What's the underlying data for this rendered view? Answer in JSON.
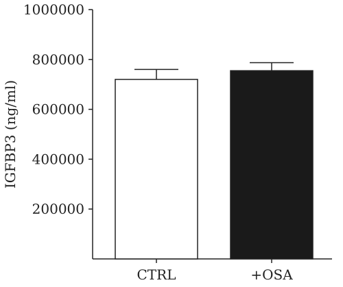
{
  "chart_data": {
    "type": "bar",
    "title": "",
    "xlabel": "",
    "ylabel": "IGFBP3 (ng/ml)",
    "ylim": [
      0,
      1000000
    ],
    "yticks": [
      200000,
      400000,
      600000,
      800000,
      1000000
    ],
    "ytick_labels": [
      "200000",
      "400000",
      "600000",
      "800000",
      "1000000"
    ],
    "categories": [
      "CTRL",
      "+OSA"
    ],
    "values": [
      720000,
      755000
    ],
    "errors": [
      40000,
      32000
    ],
    "bar_colors": [
      "#ffffff",
      "#1a1a1a"
    ],
    "grid": false,
    "legend": "none"
  }
}
